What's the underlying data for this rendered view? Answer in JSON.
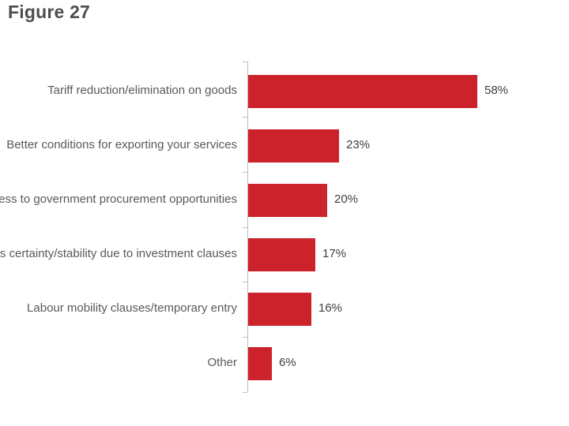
{
  "page": {
    "title": "Figure 27"
  },
  "chart_data": {
    "type": "bar",
    "orientation": "horizontal",
    "title": "Figure 27",
    "categories": [
      "Tariff reduction/elimination on goods",
      "Better conditions for exporting your services",
      "ess to government procurement opportunities",
      "s certainty/stability due to investment clauses",
      "Labour mobility clauses/temporary entry",
      "Other"
    ],
    "values": [
      58,
      23,
      20,
      17,
      16,
      6
    ],
    "value_labels": [
      "58%",
      "23%",
      "20%",
      "17%",
      "16%",
      "6%"
    ],
    "xlabel": "",
    "ylabel": "",
    "xlim": [
      0,
      78
    ],
    "grid": false,
    "legend_position": "none",
    "bar_color": "#CB222C",
    "axis_color": "#BFBFBF",
    "category_label_color": "#595959",
    "value_label_color": "#3F3F3F",
    "title_color": "#4E4E4E"
  }
}
